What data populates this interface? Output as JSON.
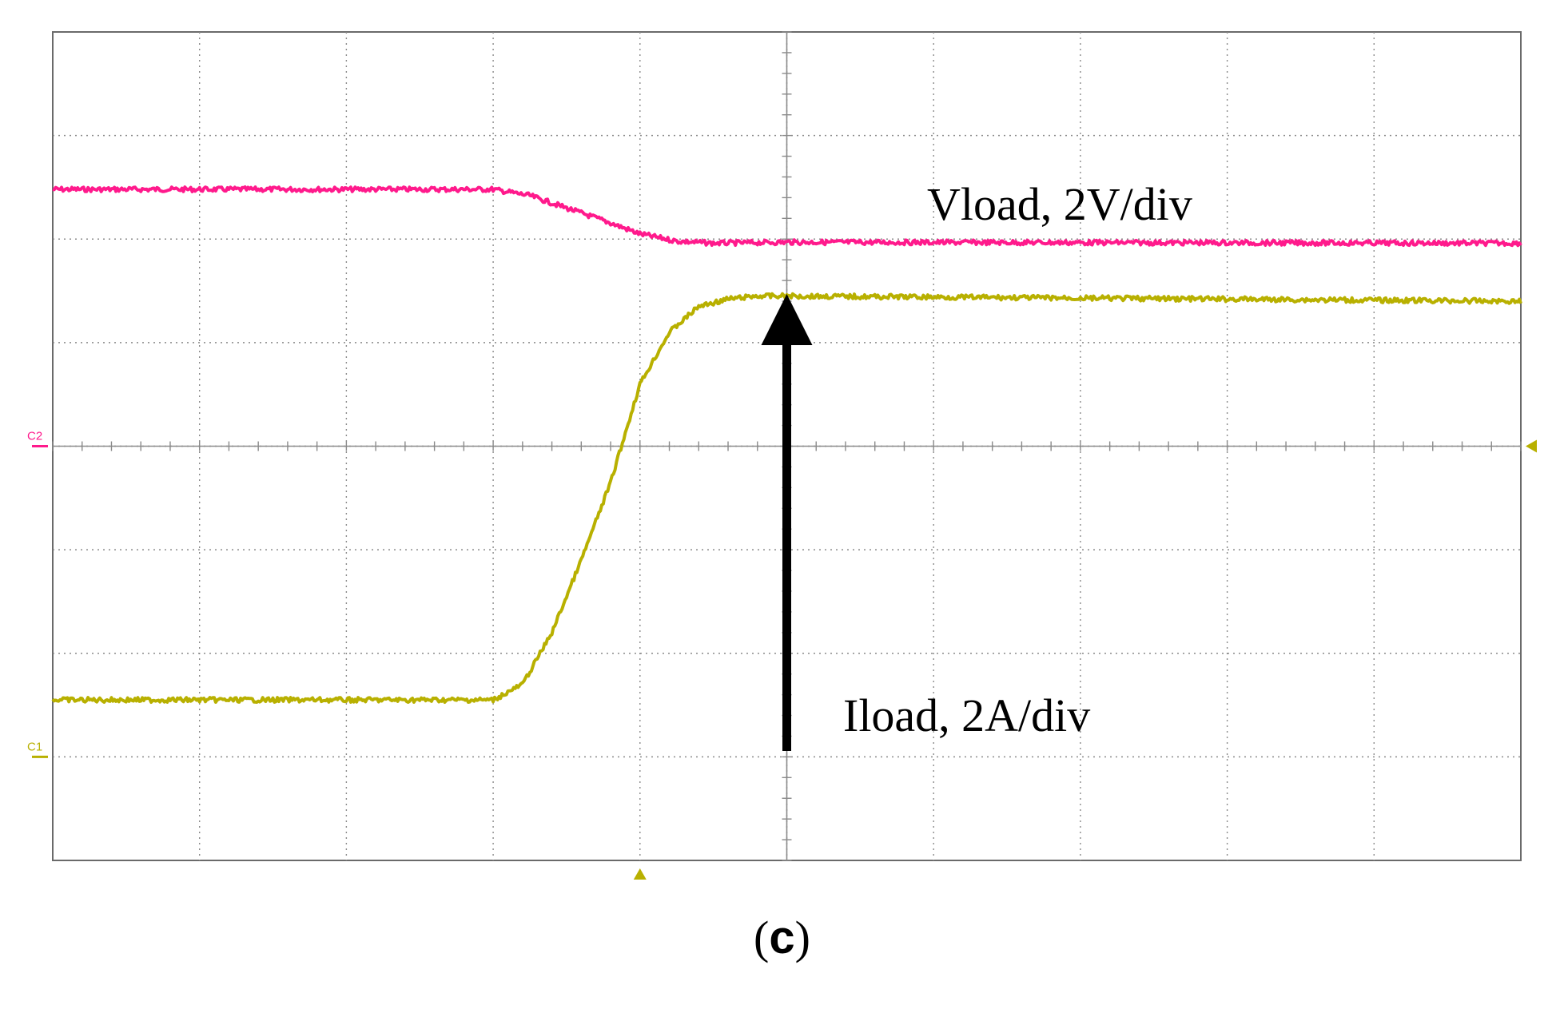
{
  "figure_label": "c",
  "chart_data": {
    "type": "line",
    "title": "",
    "xlabel": "",
    "ylabel": "",
    "xlim": [
      -5,
      5
    ],
    "ylim": [
      -4,
      4
    ],
    "grid": true,
    "x_divisions": 10,
    "y_divisions": 8,
    "series": [
      {
        "name": "Vload, 2V/div",
        "color": "#ff1a8c",
        "channel_marker": "C2",
        "ground_level_div": 0,
        "x": [
          -5,
          -2.0,
          -1.75,
          -1.5,
          -1.25,
          -1.0,
          -0.75,
          -0.5,
          0,
          5
        ],
        "y": [
          2.48,
          2.48,
          2.42,
          2.3,
          2.18,
          2.05,
          1.98,
          1.96,
          1.97,
          1.96
        ]
      },
      {
        "name": "Iload, 2A/div",
        "color": "#b8b000",
        "channel_marker": "C1",
        "ground_level_div": -3,
        "x": [
          -5,
          -2.0,
          -1.8,
          -1.6,
          -1.4,
          -1.2,
          -1.0,
          -0.8,
          -0.6,
          -0.4,
          -0.2,
          0,
          5
        ],
        "y": [
          -2.45,
          -2.45,
          -2.3,
          -1.8,
          -1.1,
          -0.35,
          0.6,
          1.1,
          1.35,
          1.42,
          1.45,
          1.45,
          1.4
        ]
      }
    ],
    "annotations": [
      {
        "text": "Vload, 2V/div"
      },
      {
        "text": "Iload, 2A/div"
      }
    ],
    "trigger_position_div": -1,
    "trigger_level_div": 0
  }
}
